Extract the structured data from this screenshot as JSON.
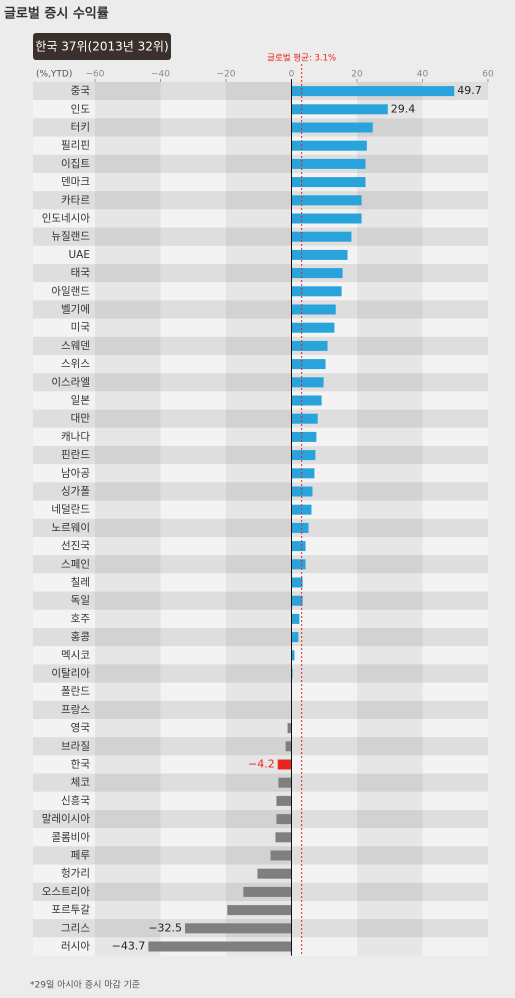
{
  "chart_data": {
    "type": "bar",
    "orientation": "horizontal",
    "title": "글로벌 증시 수익률",
    "subtitle": "한국 37위(2013년 32위)",
    "unit_label": "(%,YTD)",
    "note": "*29일 아시아 증시 마감 기준",
    "reference_line": {
      "value": 3.1,
      "label": "글로벌 평균: 3.1%",
      "color": "#e8251f"
    },
    "categories": [
      "중국",
      "인도",
      "터키",
      "필리핀",
      "이집트",
      "덴마크",
      "카타르",
      "인도네시아",
      "뉴질랜드",
      "UAE",
      "태국",
      "아일랜드",
      "벨기에",
      "미국",
      "스웨덴",
      "스위스",
      "이스라엘",
      "일본",
      "대만",
      "캐나다",
      "핀란드",
      "남아공",
      "싱가폴",
      "네덜란드",
      "노르웨이",
      "선진국",
      "스페인",
      "칠레",
      "독일",
      "호주",
      "홍콩",
      "멕시코",
      "이탈리아",
      "폴란드",
      "프랑스",
      "영국",
      "브라질",
      "한국",
      "체코",
      "신흥국",
      "말레이시아",
      "콜롬비아",
      "페루",
      "헝가리",
      "오스트리아",
      "포르투갈",
      "그리스",
      "러시아"
    ],
    "values": [
      49.7,
      29.4,
      24.8,
      23,
      22.6,
      22.6,
      21.4,
      21.4,
      18.3,
      17.1,
      15.6,
      15.3,
      13.5,
      13.1,
      11,
      10.4,
      9.8,
      9.2,
      8,
      7.6,
      7.3,
      7,
      6.4,
      6.1,
      5.2,
      4.3,
      4.3,
      3.4,
      3.4,
      2.4,
      2.1,
      0.9,
      0.3,
      0.1,
      0,
      -1.2,
      -1.8,
      -4.2,
      -4,
      -4.6,
      -4.6,
      -4.9,
      -6.4,
      -10.4,
      -14.7,
      -19.6,
      -32.5,
      -43.7
    ],
    "value_labels": [
      "49.7",
      "29.4",
      null,
      null,
      null,
      null,
      null,
      null,
      null,
      null,
      null,
      null,
      null,
      null,
      null,
      null,
      null,
      null,
      null,
      null,
      null,
      null,
      null,
      null,
      null,
      null,
      null,
      null,
      null,
      null,
      null,
      null,
      null,
      null,
      null,
      null,
      null,
      "−4.2",
      null,
      null,
      null,
      null,
      null,
      null,
      null,
      null,
      "−32.5",
      "−43.7"
    ],
    "color": "#29a3dc",
    "negative_color": "#7f7f7f",
    "highlight": {
      "index": 37,
      "color": "#e8251f"
    },
    "xlim": [
      -60,
      60
    ],
    "xticks": [
      {
        "value": -60,
        "label": "−60"
      },
      {
        "value": -40,
        "label": "−40"
      },
      {
        "value": -20,
        "label": "−20"
      },
      0,
      20,
      40,
      60
    ]
  }
}
